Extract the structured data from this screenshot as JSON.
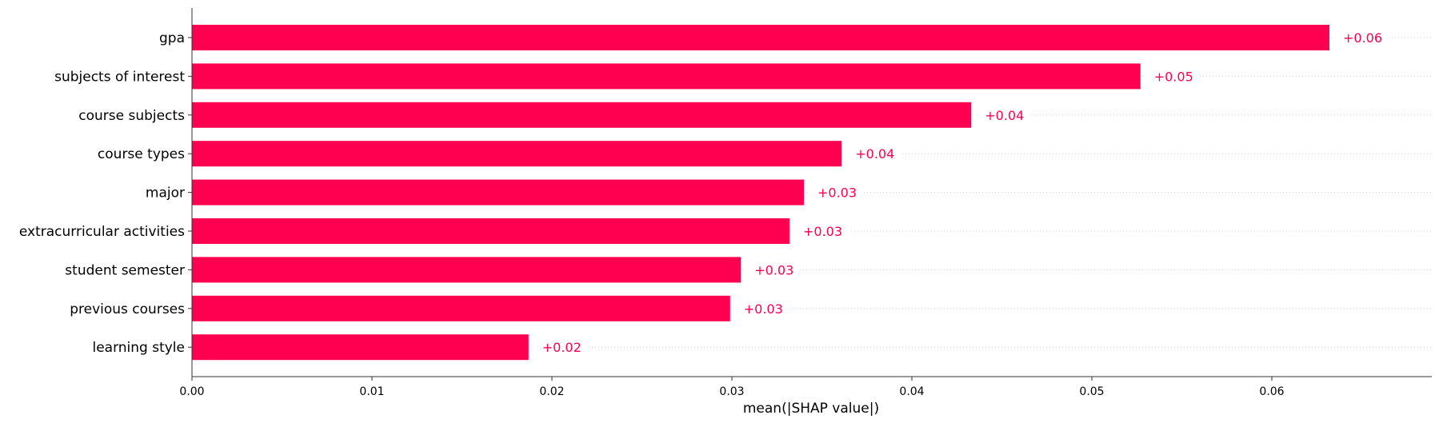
{
  "chart_data": {
    "type": "bar",
    "orientation": "horizontal",
    "categories": [
      "gpa",
      "subjects of interest",
      "course subjects",
      "course types",
      "major",
      "extracurricular activities",
      "student semester",
      "previous courses",
      "learning style"
    ],
    "values": [
      0.0632,
      0.0527,
      0.0433,
      0.0361,
      0.034,
      0.0332,
      0.0305,
      0.0299,
      0.0187
    ],
    "value_labels": [
      "+0.06",
      "+0.05",
      "+0.04",
      "+0.04",
      "+0.03",
      "+0.03",
      "+0.03",
      "+0.03",
      "+0.02"
    ],
    "xlabel": "mean(|SHAP value|)",
    "xticks": [
      "0.00",
      "0.01",
      "0.02",
      "0.03",
      "0.04",
      "0.05",
      "0.06"
    ],
    "xtick_values": [
      0,
      0.01,
      0.02,
      0.03,
      0.04,
      0.05,
      0.06
    ],
    "xlim": [
      0,
      0.0696
    ],
    "grid": "dotted row guides",
    "bar_color": "#ff0051",
    "label_color": "#ff0051"
  }
}
